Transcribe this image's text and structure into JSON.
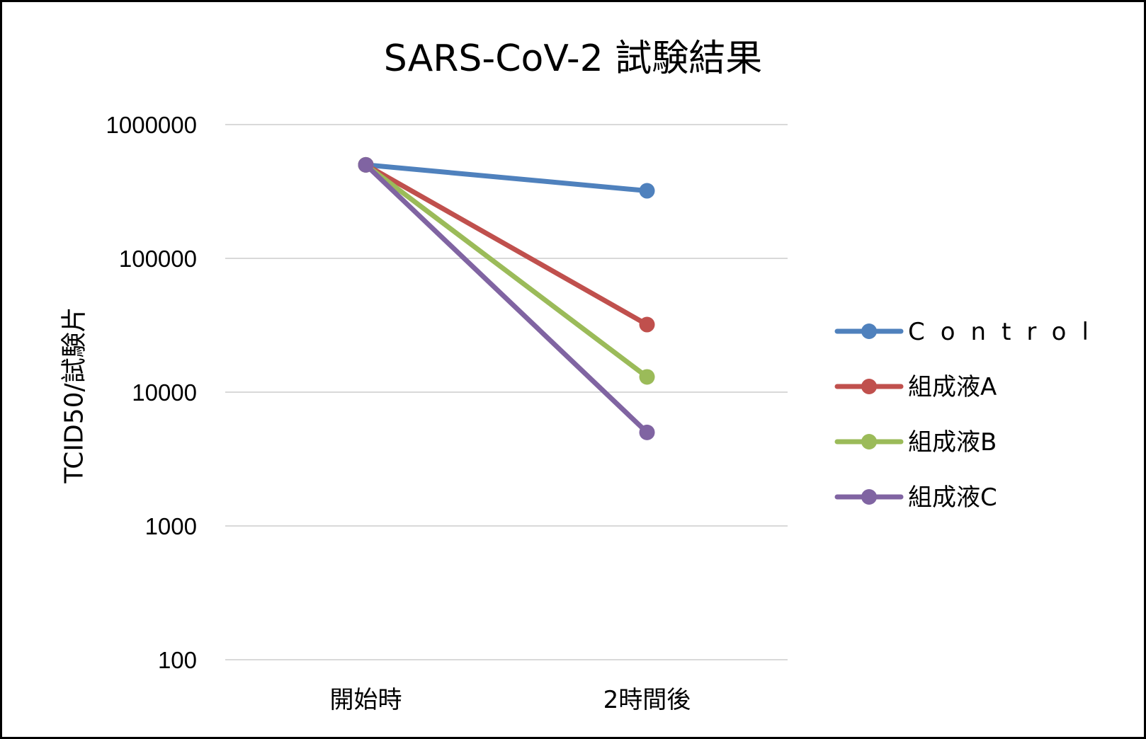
{
  "chart_data": {
    "type": "line",
    "title": "SARS-CoV-2 試験結果",
    "xlabel": "",
    "ylabel": "TCID50/試験片",
    "categories": [
      "開始時",
      "2時間後"
    ],
    "yscale": "log",
    "ylim": [
      100,
      1000000
    ],
    "yticks": [
      100,
      1000,
      10000,
      100000,
      1000000
    ],
    "ytick_labels": [
      "100",
      "1000",
      "10000",
      "100000",
      "1000000"
    ],
    "grid": true,
    "legend": "right",
    "series": [
      {
        "name": "Control",
        "values": [
          500000,
          320000
        ],
        "color": "#4f81bd"
      },
      {
        "name": "組成液A",
        "values": [
          500000,
          32000
        ],
        "color": "#c0504d"
      },
      {
        "name": "組成液B",
        "values": [
          500000,
          13000
        ],
        "color": "#9bbb59"
      },
      {
        "name": "組成液C",
        "values": [
          500000,
          5000
        ],
        "color": "#8064a2"
      }
    ]
  }
}
